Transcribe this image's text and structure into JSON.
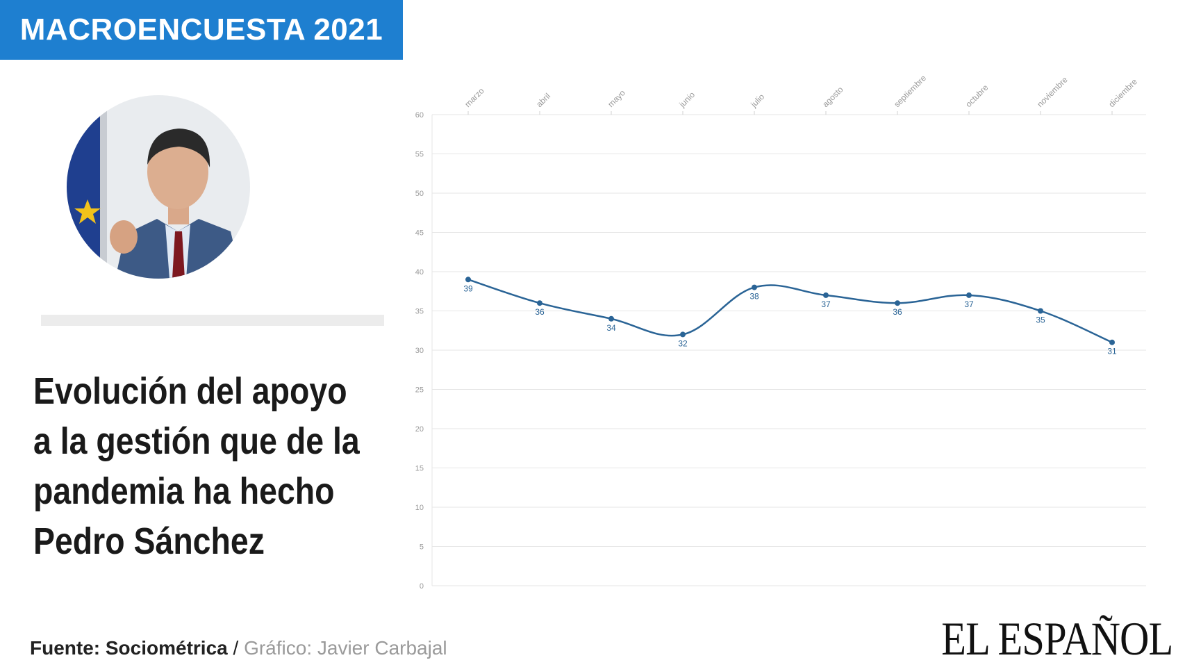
{
  "banner": {
    "label": "MACROENCUESTA 2021"
  },
  "headline": {
    "lines": [
      "Evolución del apoyo",
      "a la gestión que de la",
      "pandemia ha hecho",
      "Pedro Sánchez"
    ]
  },
  "footer": {
    "source_label": "Fuente: Sociométrica",
    "separator": "/",
    "credit": "Gráfico: Javier Carbajal"
  },
  "logo": {
    "text": "EL ESPAÑOL"
  },
  "colors": {
    "accent": "#1e7fd0",
    "series": "#2a6496",
    "grid": "#e6e6e6"
  },
  "chart_data": {
    "type": "line",
    "categories": [
      "marzo",
      "abril",
      "mayo",
      "junio",
      "julio",
      "agosto",
      "septiembre",
      "octubre",
      "noviembre",
      "diciembre"
    ],
    "series": [
      {
        "values": [
          39,
          36,
          34,
          32,
          38,
          37,
          36,
          37,
          35,
          31
        ]
      }
    ],
    "ylim": [
      0,
      60
    ],
    "yticks": [
      0,
      5,
      10,
      15,
      20,
      25,
      30,
      35,
      40,
      45,
      50,
      55,
      60
    ],
    "xaxis_position": "top",
    "grid": true,
    "data_labels": true
  }
}
